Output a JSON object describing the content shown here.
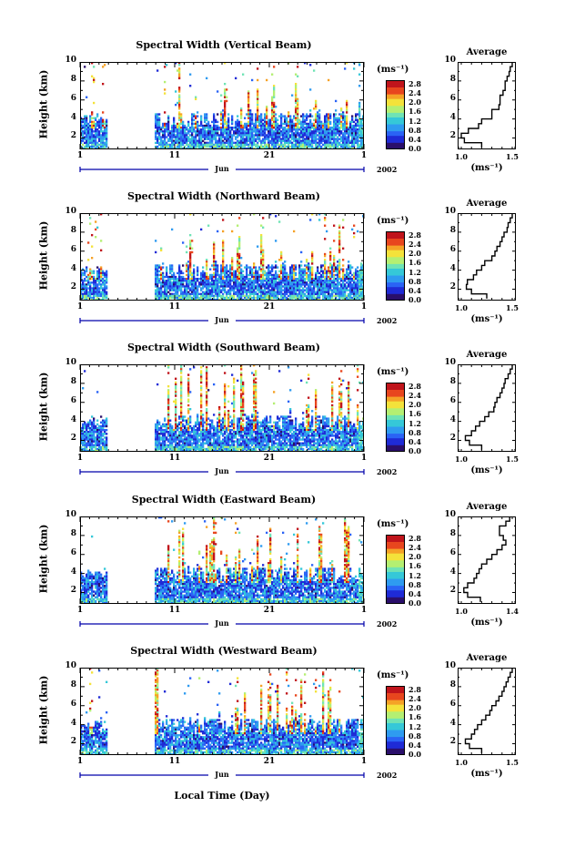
{
  "figure": {
    "xlabel": "Local Time (Day)",
    "colors": {
      "ramp": [
        "#2a0f6b",
        "#1f2bd6",
        "#2a63f5",
        "#2f9bf0",
        "#35c8d8",
        "#6fe3b5",
        "#b4ef72",
        "#f4e23a",
        "#f5a227",
        "#e8461e",
        "#c0141b"
      ],
      "axis": "#000000",
      "timebar": "#0000aa"
    }
  },
  "chart_data": [
    {
      "type": "heatmap",
      "title": "Spectral Width (Vertical Beam)",
      "ylabel": "Height (km)",
      "yticks": [
        "2",
        "4",
        "6",
        "8",
        "10"
      ],
      "ylim": [
        0.8,
        10
      ],
      "xticks": [
        "1",
        "11",
        "21",
        "1"
      ],
      "month": "Jun",
      "year": "2002",
      "colorbar": {
        "unit": "(ms⁻¹)",
        "ticks": [
          "0.0",
          "0.4",
          "0.8",
          "1.2",
          "1.6",
          "2.0",
          "2.4",
          "2.8"
        ],
        "range": [
          0.0,
          3.0
        ]
      },
      "gaps": [
        [
          3.9,
          8.9
        ]
      ],
      "average": {
        "title": "Average",
        "xticks": [
          "1.0",
          "1.5"
        ],
        "xlim": [
          1.0,
          1.5
        ],
        "unit": "(ms⁻¹)",
        "height": [
          1.0,
          1.5,
          2.0,
          2.5,
          3.0,
          3.5,
          4.0,
          4.5,
          5.0,
          5.5,
          6.0,
          6.5,
          7.0,
          7.5,
          8.0,
          8.5,
          9.0,
          9.5,
          10.0
        ],
        "value": [
          1.2,
          1.03,
          1.0,
          1.07,
          1.17,
          1.2,
          1.3,
          1.3,
          1.37,
          1.38,
          1.38,
          1.41,
          1.43,
          1.43,
          1.45,
          1.47,
          1.48,
          1.5,
          1.5
        ]
      }
    },
    {
      "type": "heatmap",
      "title": "Spectral Width (Northward Beam)",
      "ylabel": "Height (km)",
      "yticks": [
        "2",
        "4",
        "6",
        "8",
        "10"
      ],
      "ylim": [
        0.8,
        10
      ],
      "xticks": [
        "1",
        "11",
        "21",
        "1"
      ],
      "month": "Jun",
      "year": "2002",
      "colorbar": {
        "unit": "(ms⁻¹)",
        "ticks": [
          "0.0",
          "0.4",
          "0.8",
          "1.2",
          "1.6",
          "2.0",
          "2.4",
          "2.8"
        ],
        "range": [
          0.0,
          3.0
        ]
      },
      "gaps": [
        [
          3.9,
          8.9
        ]
      ],
      "average": {
        "title": "Average",
        "xticks": [
          "1.0",
          "1.5"
        ],
        "xlim": [
          1.0,
          1.5
        ],
        "unit": "(ms⁻¹)",
        "height": [
          1.0,
          1.5,
          2.0,
          2.5,
          3.0,
          3.5,
          4.0,
          4.5,
          5.0,
          5.5,
          6.0,
          6.5,
          7.0,
          7.5,
          8.0,
          8.5,
          9.0,
          9.5,
          10.0
        ],
        "value": [
          1.25,
          1.1,
          1.05,
          1.06,
          1.12,
          1.15,
          1.2,
          1.23,
          1.3,
          1.33,
          1.35,
          1.38,
          1.4,
          1.42,
          1.45,
          1.46,
          1.48,
          1.5,
          1.5
        ]
      }
    },
    {
      "type": "heatmap",
      "title": "Spectral Width (Southward Beam)",
      "ylabel": "Height (km)",
      "yticks": [
        "2",
        "4",
        "6",
        "8",
        "10"
      ],
      "ylim": [
        0.8,
        10
      ],
      "xticks": [
        "1",
        "11",
        "21",
        "1"
      ],
      "month": "Jun",
      "year": "2002",
      "colorbar": {
        "unit": "(ms⁻¹)",
        "ticks": [
          "0.0",
          "0.4",
          "0.8",
          "1.2",
          "1.6",
          "2.0",
          "2.4",
          "2.8"
        ],
        "range": [
          0.0,
          3.0
        ]
      },
      "gaps": [
        [
          3.9,
          8.9
        ]
      ],
      "average": {
        "title": "Average",
        "xticks": [
          "1.0",
          "1.5"
        ],
        "xlim": [
          1.0,
          1.5
        ],
        "unit": "(ms⁻¹)",
        "height": [
          1.0,
          1.5,
          2.0,
          2.5,
          3.0,
          3.5,
          4.0,
          4.5,
          5.0,
          5.5,
          6.0,
          6.5,
          7.0,
          7.5,
          8.0,
          8.5,
          9.0,
          9.5,
          10.0
        ],
        "value": [
          1.2,
          1.08,
          1.04,
          1.1,
          1.14,
          1.18,
          1.23,
          1.27,
          1.32,
          1.33,
          1.35,
          1.38,
          1.4,
          1.42,
          1.43,
          1.46,
          1.48,
          1.5,
          1.52
        ]
      }
    },
    {
      "type": "heatmap",
      "title": "Spectral Width (Eastward Beam)",
      "ylabel": "Height (km)",
      "yticks": [
        "2",
        "4",
        "6",
        "8",
        "10"
      ],
      "ylim": [
        0.8,
        10
      ],
      "xticks": [
        "1",
        "11",
        "21",
        "1"
      ],
      "month": "Jun",
      "year": "2002",
      "colorbar": {
        "unit": "(ms⁻¹)",
        "ticks": [
          "0.0",
          "0.4",
          "0.8",
          "1.2",
          "1.6",
          "2.0",
          "2.4",
          "2.8"
        ],
        "range": [
          0.0,
          3.0
        ]
      },
      "gaps": [
        [
          3.9,
          8.9
        ]
      ],
      "average": {
        "title": "Average",
        "xticks": [
          "1.0",
          "1.4"
        ],
        "xlim": [
          1.0,
          1.4
        ],
        "unit": "(ms⁻¹)",
        "height": [
          1.0,
          1.5,
          2.0,
          2.5,
          3.0,
          3.5,
          4.0,
          4.5,
          5.0,
          5.5,
          6.0,
          6.5,
          7.0,
          7.5,
          8.0,
          8.5,
          9.0,
          9.5,
          10.0
        ],
        "value": [
          1.15,
          1.05,
          1.02,
          1.05,
          1.1,
          1.12,
          1.14,
          1.16,
          1.2,
          1.24,
          1.28,
          1.32,
          1.35,
          1.33,
          1.3,
          1.3,
          1.35,
          1.38,
          1.4
        ]
      }
    },
    {
      "type": "heatmap",
      "title": "Spectral Width (Westward Beam)",
      "ylabel": "Height (km)",
      "yticks": [
        "2",
        "4",
        "6",
        "8",
        "10"
      ],
      "ylim": [
        0.8,
        10
      ],
      "xticks": [
        "1",
        "11",
        "21",
        "1"
      ],
      "month": "Jun",
      "year": "2002",
      "colorbar": {
        "unit": "(ms⁻¹)",
        "ticks": [
          "0.0",
          "0.4",
          "0.8",
          "1.2",
          "1.6",
          "2.0",
          "2.4",
          "2.8"
        ],
        "range": [
          0.0,
          3.0
        ]
      },
      "gaps": [
        [
          3.9,
          8.9
        ]
      ],
      "average": {
        "title": "Average",
        "xticks": [
          "1.0",
          "1.5"
        ],
        "xlim": [
          1.0,
          1.5
        ],
        "unit": "(ms⁻¹)",
        "height": [
          1.0,
          1.5,
          2.0,
          2.5,
          3.0,
          3.5,
          4.0,
          4.5,
          5.0,
          5.5,
          6.0,
          6.5,
          7.0,
          7.5,
          8.0,
          8.5,
          9.0,
          9.5,
          10.0
        ],
        "value": [
          1.2,
          1.08,
          1.04,
          1.1,
          1.13,
          1.16,
          1.2,
          1.24,
          1.28,
          1.3,
          1.34,
          1.37,
          1.4,
          1.42,
          1.44,
          1.46,
          1.48,
          1.5,
          1.52
        ]
      }
    }
  ]
}
